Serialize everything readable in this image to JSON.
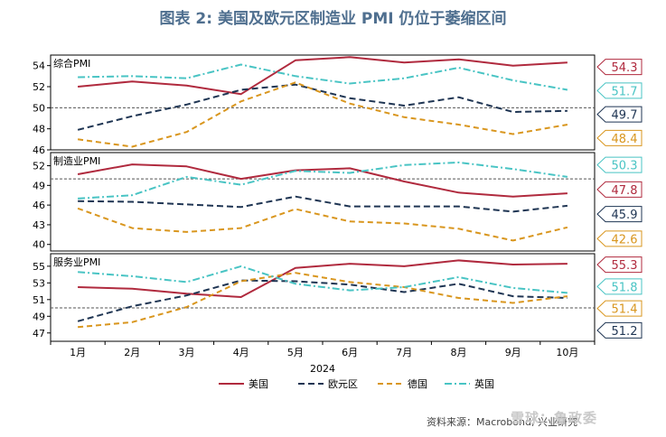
{
  "title": "图表 2:   美国及欧元区制造业 PMI 仍位于萎缩区间",
  "source": "资料来源：Macrobond, 兴业研究",
  "watermark": "雪球：鲁政委",
  "colors": {
    "us": "#b02a3e",
    "ez": "#1f3553",
    "de": "#d9961e",
    "uk": "#49c4c4",
    "ref": "#555555"
  },
  "chart_data": {
    "type": "line",
    "x": [
      "1月",
      "2月",
      "3月",
      "4月",
      "5月",
      "6月",
      "7月",
      "8月",
      "9月",
      "10月"
    ],
    "xlabel": "2024",
    "legend": [
      "美国",
      "欧元区",
      "德国",
      "英国"
    ],
    "legend_position": "bottom",
    "panels": [
      {
        "name": "综合PMI",
        "ylim": [
          46,
          55
        ],
        "yticks": [
          46,
          48,
          50,
          52,
          54
        ],
        "ref": 50,
        "series": [
          {
            "name": "美国",
            "key": "us",
            "values": [
              52.0,
              52.5,
              52.1,
              51.3,
              54.5,
              54.8,
              54.3,
              54.6,
              54.0,
              54.3
            ],
            "last_label": "54.3"
          },
          {
            "name": "欧元区",
            "key": "ez",
            "values": [
              47.9,
              49.2,
              50.3,
              51.7,
              52.2,
              50.9,
              50.2,
              51.0,
              49.6,
              49.7
            ],
            "last_label": "49.7"
          },
          {
            "name": "德国",
            "key": "de",
            "values": [
              47.0,
              46.3,
              47.7,
              50.6,
              52.4,
              50.4,
              49.1,
              48.4,
              47.5,
              48.4
            ],
            "last_label": "48.4"
          },
          {
            "name": "英国",
            "key": "uk",
            "values": [
              52.9,
              53.0,
              52.8,
              54.1,
              53.0,
              52.3,
              52.8,
              53.8,
              52.6,
              51.7
            ],
            "last_label": "51.7"
          }
        ],
        "label_order": [
          "us",
          "uk",
          "ez",
          "de"
        ]
      },
      {
        "name": "制造业PMI",
        "ylim": [
          39,
          54
        ],
        "yticks": [
          40,
          43,
          46,
          49,
          52
        ],
        "ref": 50,
        "series": [
          {
            "name": "美国",
            "key": "us",
            "values": [
              50.7,
              52.2,
              51.9,
              50.0,
              51.3,
              51.6,
              49.6,
              47.9,
              47.3,
              47.8
            ],
            "last_label": "47.8"
          },
          {
            "name": "欧元区",
            "key": "ez",
            "values": [
              46.6,
              46.5,
              46.1,
              45.7,
              47.3,
              45.8,
              45.8,
              45.8,
              45.0,
              45.9
            ],
            "last_label": "45.9"
          },
          {
            "name": "德国",
            "key": "de",
            "values": [
              45.5,
              42.5,
              41.9,
              42.5,
              45.4,
              43.5,
              43.2,
              42.4,
              40.6,
              42.6
            ],
            "last_label": "42.6"
          },
          {
            "name": "英国",
            "key": "uk",
            "values": [
              47.0,
              47.5,
              50.3,
              49.1,
              51.2,
              50.9,
              52.1,
              52.5,
              51.5,
              50.3
            ],
            "last_label": "50.3"
          }
        ],
        "label_order": [
          "uk",
          "us",
          "ez",
          "de"
        ]
      },
      {
        "name": "服务业PMI",
        "ylim": [
          46,
          56.5
        ],
        "yticks": [
          47,
          49,
          51,
          53,
          55
        ],
        "ref": 50,
        "series": [
          {
            "name": "美国",
            "key": "us",
            "values": [
              52.5,
              52.3,
              51.7,
              51.3,
              54.8,
              55.3,
              55.0,
              55.7,
              55.2,
              55.3
            ],
            "last_label": "55.3"
          },
          {
            "name": "欧元区",
            "key": "ez",
            "values": [
              48.4,
              50.2,
              51.5,
              53.3,
              53.2,
              52.8,
              51.9,
              52.9,
              51.4,
              51.2
            ],
            "last_label": "51.2"
          },
          {
            "name": "德国",
            "key": "de",
            "values": [
              47.7,
              48.3,
              50.1,
              53.2,
              54.2,
              53.1,
              52.5,
              51.2,
              50.6,
              51.4
            ],
            "last_label": "51.4"
          },
          {
            "name": "英国",
            "key": "uk",
            "values": [
              54.3,
              53.8,
              53.1,
              55.0,
              52.9,
              52.1,
              52.5,
              53.7,
              52.4,
              51.8
            ],
            "last_label": "51.8"
          }
        ],
        "label_order": [
          "us",
          "uk",
          "de",
          "ez"
        ]
      }
    ]
  }
}
